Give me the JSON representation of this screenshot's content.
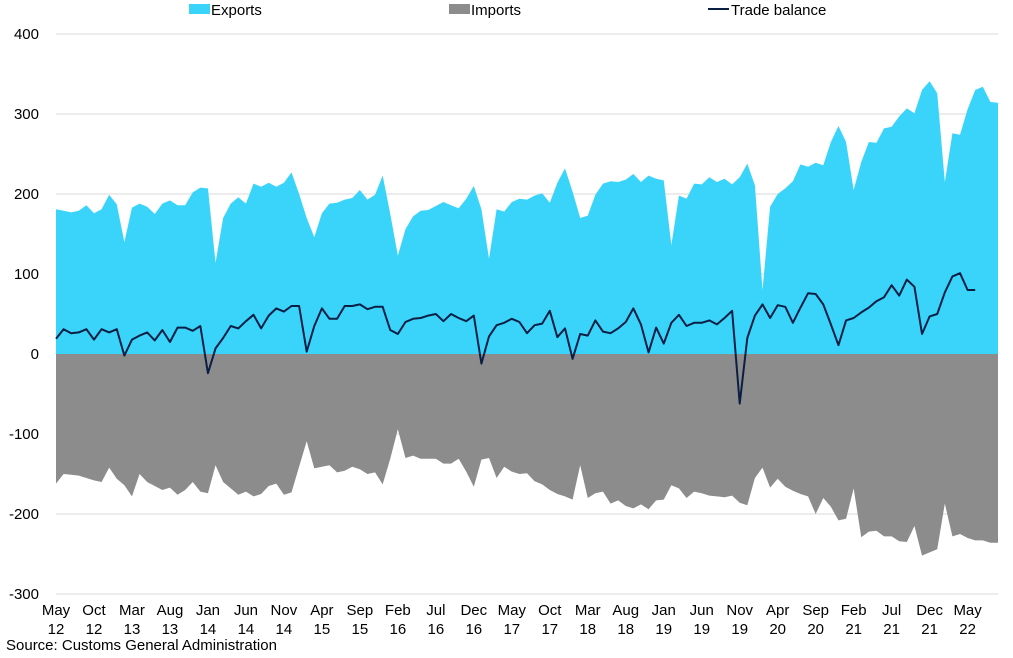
{
  "chart_data": {
    "type": "area",
    "ylim": [
      -300,
      400
    ],
    "yticks": [
      -300,
      -200,
      -100,
      0,
      100,
      200,
      300,
      400
    ],
    "grid": true,
    "legend_position": "top",
    "start": "May 2012",
    "x_tick_labels": [
      [
        "May",
        "12"
      ],
      [
        "Oct",
        "12"
      ],
      [
        "Mar",
        "13"
      ],
      [
        "Aug",
        "13"
      ],
      [
        "Jan",
        "14"
      ],
      [
        "Jun",
        "14"
      ],
      [
        "Nov",
        "14"
      ],
      [
        "Apr",
        "15"
      ],
      [
        "Sep",
        "15"
      ],
      [
        "Feb",
        "16"
      ],
      [
        "Jul",
        "16"
      ],
      [
        "Dec",
        "16"
      ],
      [
        "May",
        "17"
      ],
      [
        "Oct",
        "17"
      ],
      [
        "Mar",
        "18"
      ],
      [
        "Aug",
        "18"
      ],
      [
        "Jan",
        "19"
      ],
      [
        "Jun",
        "19"
      ],
      [
        "Nov",
        "19"
      ],
      [
        "Apr",
        "20"
      ],
      [
        "Sep",
        "20"
      ],
      [
        "Feb",
        "21"
      ],
      [
        "Jul",
        "21"
      ],
      [
        "Dec",
        "21"
      ],
      [
        "May",
        "22"
      ]
    ],
    "series": [
      {
        "name": "Exports",
        "type": "area",
        "color": "#3ad4fb",
        "values": [
          181,
          179,
          177,
          179,
          186,
          176,
          181,
          199,
          187,
          140,
          183,
          188,
          184,
          175,
          188,
          192,
          186,
          186,
          202,
          208,
          207,
          114,
          170,
          188,
          196,
          188,
          213,
          209,
          214,
          209,
          214,
          227,
          200,
          170,
          146,
          176,
          188,
          189,
          193,
          195,
          205,
          193,
          199,
          223,
          175,
          123,
          156,
          172,
          179,
          180,
          185,
          190,
          186,
          182,
          194,
          210,
          181,
          119,
          181,
          178,
          190,
          194,
          193,
          198,
          201,
          189,
          214,
          232,
          203,
          170,
          173,
          199,
          213,
          216,
          215,
          218,
          225,
          215,
          223,
          219,
          217,
          136,
          198,
          194,
          213,
          212,
          221,
          215,
          219,
          212,
          221,
          238,
          211,
          80,
          184,
          200,
          207,
          216,
          237,
          234,
          239,
          236,
          265,
          285,
          265,
          205,
          240,
          265,
          264,
          282,
          284,
          297,
          307,
          301,
          330,
          341,
          326,
          215,
          276,
          274,
          306,
          330,
          334,
          315,
          314
        ],
        "show_in_legend": true
      },
      {
        "name": "Imports",
        "type": "area",
        "color": "#8c8c8c",
        "values": [
          -162,
          -150,
          -151,
          -152,
          -155,
          -158,
          -160,
          -142,
          -156,
          -164,
          -178,
          -150,
          -160,
          -165,
          -170,
          -167,
          -176,
          -170,
          -160,
          -172,
          -174,
          -139,
          -160,
          -168,
          -176,
          -172,
          -178,
          -175,
          -165,
          -162,
          -176,
          -173,
          -141,
          -109,
          -143,
          -141,
          -139,
          -148,
          -146,
          -141,
          -144,
          -150,
          -148,
          -163,
          -131,
          -94,
          -130,
          -127,
          -131,
          -131,
          -131,
          -137,
          -137,
          -131,
          -147,
          -166,
          -132,
          -130,
          -155,
          -141,
          -147,
          -150,
          -149,
          -159,
          -163,
          -170,
          -175,
          -178,
          -182,
          -139,
          -180,
          -174,
          -172,
          -187,
          -183,
          -190,
          -193,
          -188,
          -194,
          -183,
          -182,
          -164,
          -168,
          -180,
          -172,
          -174,
          -177,
          -178,
          -179,
          -177,
          -186,
          -189,
          -155,
          -142,
          -167,
          -156,
          -166,
          -171,
          -175,
          -178,
          -200,
          -180,
          -191,
          -208,
          -206,
          -168,
          -229,
          -222,
          -221,
          -228,
          -228,
          -234,
          -235,
          -215,
          -252,
          -248,
          -244,
          -187,
          -228,
          -225,
          -230,
          -233,
          -233,
          -236,
          -236
        ],
        "show_in_legend": true
      },
      {
        "name": "Trade balance",
        "type": "line",
        "color": "#0b1f45",
        "values": [
          19,
          31,
          26,
          27,
          31,
          18,
          31,
          27,
          31,
          -2,
          18,
          23,
          27,
          17,
          30,
          15,
          33,
          33,
          29,
          35,
          -24,
          7,
          20,
          35,
          32,
          41,
          49,
          32,
          48,
          57,
          53,
          60,
          60,
          3,
          35,
          57,
          44,
          44,
          60,
          60,
          62,
          56,
          59,
          59,
          30,
          25,
          40,
          44,
          45,
          48,
          50,
          41,
          50,
          45,
          41,
          48,
          -12,
          22,
          36,
          39,
          44,
          40,
          26,
          36,
          38,
          54,
          21,
          32,
          -6,
          25,
          23,
          42,
          28,
          26,
          32,
          40,
          57,
          37,
          2,
          33,
          13,
          39,
          49,
          35,
          39,
          39,
          42,
          37,
          45,
          54,
          -62,
          20,
          48,
          62,
          45,
          61,
          59,
          39,
          58,
          76,
          75,
          62,
          37,
          11,
          42,
          45,
          52,
          58,
          66,
          71,
          86,
          73,
          93,
          84,
          25,
          47,
          50,
          77,
          97,
          101,
          80,
          80
        ],
        "show_in_legend": true
      }
    ]
  },
  "legend": {
    "exports_label": "Exports",
    "imports_label": "Imports",
    "balance_label": "Trade balance"
  },
  "source": "Source: Customs General Administration"
}
